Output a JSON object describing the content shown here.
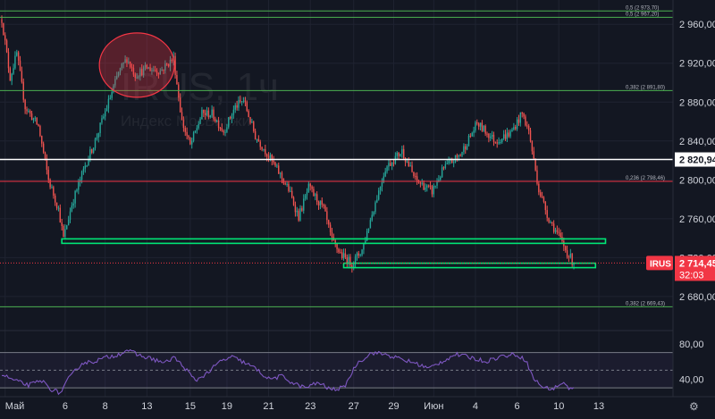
{
  "chart_data": [
    {
      "type": "candlestick",
      "watermark": {
        "symbol": "IRUS, 1ч",
        "subtitle": "Индекс МосБиржи"
      },
      "ylim": [
        2645,
        2985
      ],
      "y_ticks": [
        {
          "value": 2960,
          "label": "2 960,00"
        },
        {
          "value": 2920,
          "label": "2 920,00"
        },
        {
          "value": 2880,
          "label": "2 880,00"
        },
        {
          "value": 2840,
          "label": "2 840,00"
        },
        {
          "value": 2800,
          "label": "2 800,00"
        },
        {
          "value": 2760,
          "label": "2 760,00"
        },
        {
          "value": 2720,
          "label": "2 720,00"
        },
        {
          "value": 2680,
          "label": "2 680,00"
        }
      ],
      "x_ticks": [
        {
          "label": "Май",
          "bar": 2
        },
        {
          "label": "6",
          "bar": 38
        },
        {
          "label": "8",
          "bar": 62
        },
        {
          "label": "13",
          "bar": 87
        },
        {
          "label": "15",
          "bar": 113
        },
        {
          "label": "19",
          "bar": 135
        },
        {
          "label": "21",
          "bar": 160
        },
        {
          "label": "23",
          "bar": 185
        },
        {
          "label": "27",
          "bar": 211
        },
        {
          "label": "29",
          "bar": 235
        },
        {
          "label": "Июн",
          "bar": 259
        },
        {
          "label": "4",
          "bar": 284
        },
        {
          "label": "6",
          "bar": 309
        },
        {
          "label": "10",
          "bar": 334
        },
        {
          "label": "13",
          "bar": 358
        }
      ],
      "bar_count": 365,
      "anchors": [
        [
          0,
          2965
        ],
        [
          5,
          2905
        ],
        [
          9,
          2930
        ],
        [
          14,
          2875
        ],
        [
          22,
          2855
        ],
        [
          28,
          2800
        ],
        [
          34,
          2770
        ],
        [
          37,
          2740
        ],
        [
          42,
          2775
        ],
        [
          50,
          2815
        ],
        [
          56,
          2840
        ],
        [
          63,
          2875
        ],
        [
          70,
          2910
        ],
        [
          75,
          2925
        ],
        [
          80,
          2908
        ],
        [
          87,
          2915
        ],
        [
          95,
          2912
        ],
        [
          103,
          2925
        ],
        [
          108,
          2860
        ],
        [
          113,
          2835
        ],
        [
          120,
          2868
        ],
        [
          126,
          2868
        ],
        [
          133,
          2850
        ],
        [
          140,
          2875
        ],
        [
          145,
          2882
        ],
        [
          152,
          2845
        ],
        [
          158,
          2830
        ],
        [
          167,
          2805
        ],
        [
          172,
          2790
        ],
        [
          178,
          2762
        ],
        [
          184,
          2792
        ],
        [
          193,
          2770
        ],
        [
          198,
          2737
        ],
        [
          204,
          2722
        ],
        [
          210,
          2714
        ],
        [
          216,
          2728
        ],
        [
          222,
          2765
        ],
        [
          230,
          2812
        ],
        [
          240,
          2830
        ],
        [
          248,
          2800
        ],
        [
          258,
          2788
        ],
        [
          265,
          2812
        ],
        [
          275,
          2826
        ],
        [
          285,
          2858
        ],
        [
          296,
          2840
        ],
        [
          305,
          2848
        ],
        [
          312,
          2868
        ],
        [
          316,
          2850
        ],
        [
          322,
          2790
        ],
        [
          328,
          2760
        ],
        [
          334,
          2742
        ],
        [
          339,
          2725
        ],
        [
          343,
          2714
        ]
      ],
      "levels": [
        {
          "value": 2973.7,
          "label": "0,5 (2 973,70)",
          "color": "#4caf50"
        },
        {
          "value": 2967.2,
          "label": "0,5 (2 967,20)",
          "color": "#4caf50"
        },
        {
          "value": 2891.8,
          "label": "0,382 (2 891,80)",
          "color": "#4caf50"
        },
        {
          "value": 2798.46,
          "label": "0,236 (2 798,46)",
          "color": "#f23645"
        },
        {
          "value": 2669.43,
          "label": "0,382 (2 669,43)",
          "color": "#4caf50"
        }
      ],
      "hline": {
        "value": 2820.94,
        "label": "2 820,94",
        "color": "#ffffff"
      },
      "support_zones": [
        {
          "value": 2737,
          "bar_from": 36,
          "bar_to": 362,
          "color": "#00e676"
        },
        {
          "value": 2712,
          "bar_from": 205,
          "bar_to": 356,
          "color": "#00e676"
        }
      ],
      "last_price": {
        "value": 2714.45,
        "symbol": "IRUS",
        "label": "2 714,45",
        "countdown": "32:03",
        "color": "#f23645"
      },
      "highlight_ellipse": {
        "bar": 81,
        "value": 2918,
        "color": "#f23645"
      },
      "colors": {
        "up": "#26a69a",
        "down": "#ef5350",
        "grid": "#1f2331",
        "background": "#131722"
      }
    },
    {
      "type": "line",
      "indicator": "oscillator",
      "ylim": [
        20,
        95
      ],
      "y_ticks": [
        {
          "value": 80,
          "label": "80,00"
        },
        {
          "value": 40,
          "label": "40,00"
        }
      ],
      "band": {
        "upper": 70,
        "lower": 30,
        "middle": 50
      },
      "anchors": [
        [
          0,
          45
        ],
        [
          8,
          38
        ],
        [
          16,
          33
        ],
        [
          24,
          38
        ],
        [
          30,
          28
        ],
        [
          35,
          24
        ],
        [
          40,
          40
        ],
        [
          48,
          58
        ],
        [
          55,
          60
        ],
        [
          62,
          64
        ],
        [
          70,
          68
        ],
        [
          75,
          73
        ],
        [
          82,
          67
        ],
        [
          90,
          63
        ],
        [
          98,
          58
        ],
        [
          103,
          65
        ],
        [
          110,
          52
        ],
        [
          116,
          38
        ],
        [
          124,
          48
        ],
        [
          131,
          60
        ],
        [
          138,
          65
        ],
        [
          144,
          60
        ],
        [
          152,
          52
        ],
        [
          160,
          40
        ],
        [
          168,
          43
        ],
        [
          175,
          35
        ],
        [
          182,
          30
        ],
        [
          190,
          36
        ],
        [
          197,
          28
        ],
        [
          205,
          30
        ],
        [
          213,
          58
        ],
        [
          222,
          70
        ],
        [
          230,
          68
        ],
        [
          240,
          62
        ],
        [
          248,
          58
        ],
        [
          256,
          52
        ],
        [
          264,
          60
        ],
        [
          272,
          68
        ],
        [
          280,
          65
        ],
        [
          290,
          60
        ],
        [
          300,
          66
        ],
        [
          308,
          68
        ],
        [
          314,
          62
        ],
        [
          319,
          40
        ],
        [
          325,
          30
        ],
        [
          331,
          29
        ],
        [
          336,
          36
        ],
        [
          340,
          30
        ],
        [
          343,
          29
        ]
      ],
      "line_color": "#7e57c2"
    }
  ]
}
